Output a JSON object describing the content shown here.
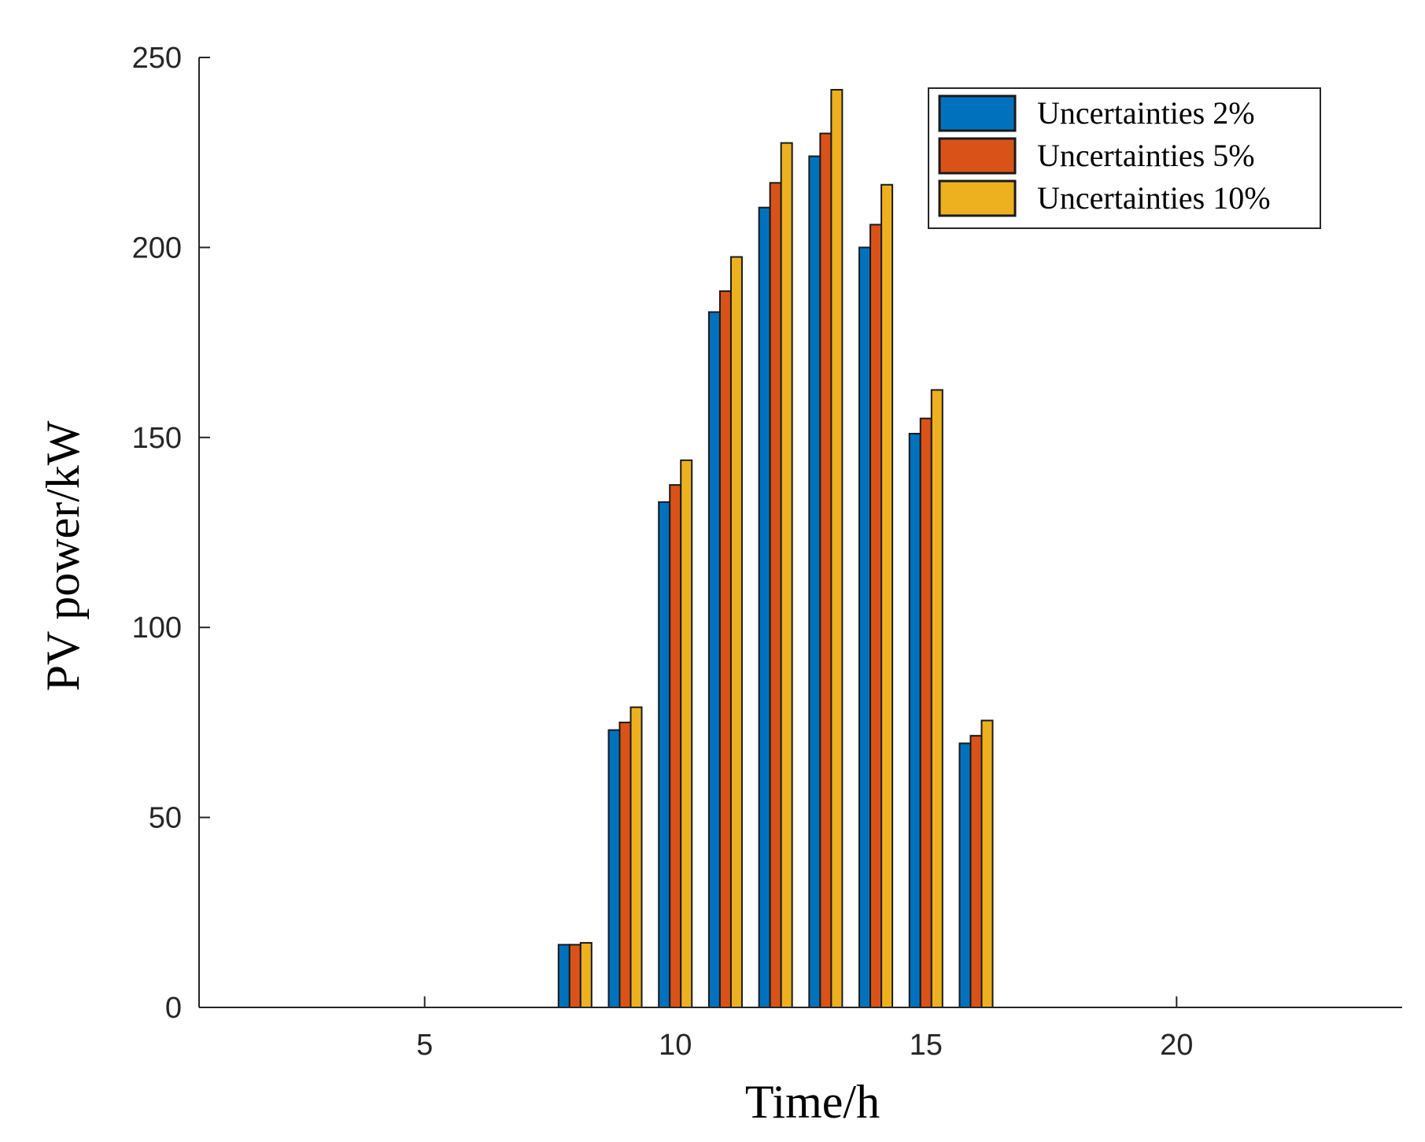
{
  "chart_data": {
    "type": "bar",
    "title": "",
    "xlabel": "Time/h",
    "ylabel": "PV power/kW",
    "x": [
      8,
      9,
      10,
      11,
      12,
      13,
      14,
      15,
      16
    ],
    "xlim": [
      0.5,
      24.5
    ],
    "ylim": [
      0,
      250
    ],
    "xticks": [
      "5",
      "10",
      "15",
      "20"
    ],
    "yticks": [
      "0",
      "50",
      "100",
      "150",
      "200",
      "250"
    ],
    "grid": false,
    "legend_position": "top-right",
    "series": [
      {
        "name": "Uncertainties 2%",
        "color": "#0072BD",
        "values": [
          16.5,
          73,
          133,
          183,
          210.5,
          224,
          200,
          151,
          69.5
        ]
      },
      {
        "name": "Uncertainties 5%",
        "color": "#D95319",
        "values": [
          16.5,
          75,
          137.5,
          188.5,
          217,
          230,
          206,
          155,
          71.5
        ]
      },
      {
        "name": "Uncertainties 10%",
        "color": "#EDB120",
        "values": [
          17,
          79,
          144,
          197.5,
          227.5,
          241.5,
          216.5,
          162.5,
          75.5
        ]
      }
    ]
  }
}
